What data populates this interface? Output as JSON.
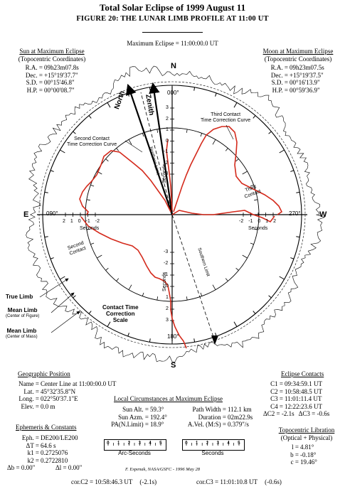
{
  "header": {
    "title": "Total Solar Eclipse of 1999 August 11",
    "subtitle": "FIGURE 20:  THE LUNAR LIMB PROFILE AT 11:00 UT",
    "max_eclipse": "Maximum Eclipse = 11:00:00.0 UT"
  },
  "sun": {
    "heading": "Sun at Maximum Eclipse",
    "sub": "(Topocentric Coordinates)",
    "rows": [
      {
        "label": "R.A. =",
        "value": "09h23m07.8s"
      },
      {
        "label": "Dec. =",
        "value": "+15°19'37.7\""
      },
      {
        "label": "S.D. =",
        "value": "00°15'46.8\""
      },
      {
        "label": "H.P. =",
        "value": "00°00'08.7\""
      }
    ]
  },
  "moon": {
    "heading": "Moon at Maximum Eclipse",
    "sub": "(Topocentric Coordinates)",
    "rows": [
      {
        "label": "R.A. =",
        "value": "09h23m07.5s"
      },
      {
        "label": "Dec. =",
        "value": "+15°19'37.5\""
      },
      {
        "label": "S.D. =",
        "value": "00°16'13.9\""
      },
      {
        "label": "H.P. =",
        "value": "00°59'36.9\""
      }
    ]
  },
  "diagram": {
    "compass": {
      "north": "N",
      "south": "S",
      "east": "E",
      "west": "W"
    },
    "angles": {
      "top": "000°",
      "left": "090°",
      "right": "270°",
      "bottom": "180°"
    },
    "axis_word": "Seconds",
    "north_label": "North",
    "zenith_label": "Zenith",
    "northern_limit": "Northern Limit",
    "southern_limit": "Southern Limit",
    "third_contact_curve": [
      "Third Contact",
      "Time Correction Curve"
    ],
    "second_contact_curve": [
      "Second Contact",
      "Time Correction Curve"
    ],
    "third_contact": [
      "Third",
      "Contact"
    ],
    "second_contact": [
      "Second",
      "Contact"
    ],
    "contact_scale": [
      "Contact Time",
      "Correction",
      "Scale"
    ],
    "true_limb": "True Limb",
    "mean_limb_fig": [
      "Mean Limb",
      "(Center of Figure)"
    ],
    "mean_limb_mass": [
      "Mean Limb",
      "(Center of Mass)"
    ],
    "vert_ticks_up": [
      "3",
      "2",
      "1",
      "0",
      "-1",
      "-2",
      "-3"
    ],
    "vert_ticks_down": [
      "-3",
      "-2",
      "-1",
      "0",
      "1",
      "2",
      "3"
    ],
    "left_ticks": [
      "2",
      "1",
      "0",
      "-1",
      "-2"
    ],
    "right_ticks": [
      "-2",
      "-1",
      "0",
      "1",
      "2"
    ],
    "colors": {
      "curve": "#d42a1c",
      "ink": "#000000"
    }
  },
  "geo": {
    "heading": "Geographic Position",
    "rows": [
      {
        "label": "Name =",
        "value": "Center Line at 11:00:00.0 UT"
      },
      {
        "label": "Lat. =",
        "value": "45°32'35.8\"N"
      },
      {
        "label": "Long. =",
        "value": "022°50'37.1\"E"
      },
      {
        "label": "Elev. =",
        "value": "0.0 m"
      }
    ]
  },
  "ephem": {
    "heading": "Ephemeris & Constants",
    "rows": [
      {
        "label": "Eph. =",
        "value": "DE200/LE200"
      },
      {
        "label": "ΔT =",
        "value": "64.6 s"
      },
      {
        "label": "k1 =",
        "value": "0.2725076"
      },
      {
        "label": "k2 =",
        "value": "0.2722810"
      }
    ],
    "last": {
      "db": "Δb = 0.00\"",
      "dl": "Δl = 0.00\""
    }
  },
  "local": {
    "heading": "Local Circumstances at Maximum Eclipse",
    "left": [
      {
        "label": "Sun Alt. =",
        "value": "59.3°"
      },
      {
        "label": "Sun Azm. =",
        "value": "192.4°"
      },
      {
        "label": "PA(N.Limit) =",
        "value": "18.9°"
      }
    ],
    "right": [
      {
        "label": "Path Width =",
        "value": "112.1 km"
      },
      {
        "label": "Duration =",
        "value": "02m22.9s"
      },
      {
        "label": "A.Vel. (M:S) =",
        "value": "0.379\"/s"
      }
    ],
    "scale1": {
      "ticks": [
        "0",
        "1",
        "2",
        "3",
        "4",
        "5"
      ],
      "label": "Arc-Seconds"
    },
    "scale2": {
      "ticks": [
        "0",
        "1",
        "2",
        "3",
        "4",
        "5"
      ],
      "label": "Seconds"
    },
    "credit": "F. Espenak, NASA/GSFC - 1996 May 28"
  },
  "contacts": {
    "heading": "Eclipse Contacts",
    "rows": [
      {
        "label": "C1 =",
        "value": "09:34:59.1 UT"
      },
      {
        "label": "C2 =",
        "value": "10:58:48.5 UT"
      },
      {
        "label": "C3 =",
        "value": "11:01:11.4 UT"
      },
      {
        "label": "C4 =",
        "value": "12:22:23.6 UT"
      }
    ],
    "dc2": "ΔC2 = -2.1s",
    "dc3": "ΔC3 = -0.6s"
  },
  "libration": {
    "heading": "Topocentric Libration",
    "sub": "(Optical + Physical)",
    "rows": [
      {
        "label": "l =",
        "value": "4.81°"
      },
      {
        "label": "b =",
        "value": "-0.18°"
      },
      {
        "label": "c =",
        "value": "19.46°"
      }
    ]
  },
  "footer": {
    "corc2": "cor.C2 = 10:58:46.3 UT",
    "corc2b": "(-2.1s)",
    "corc3": "cor.C3 = 11:01:10.8 UT",
    "corc3b": "(-0.6s)"
  }
}
